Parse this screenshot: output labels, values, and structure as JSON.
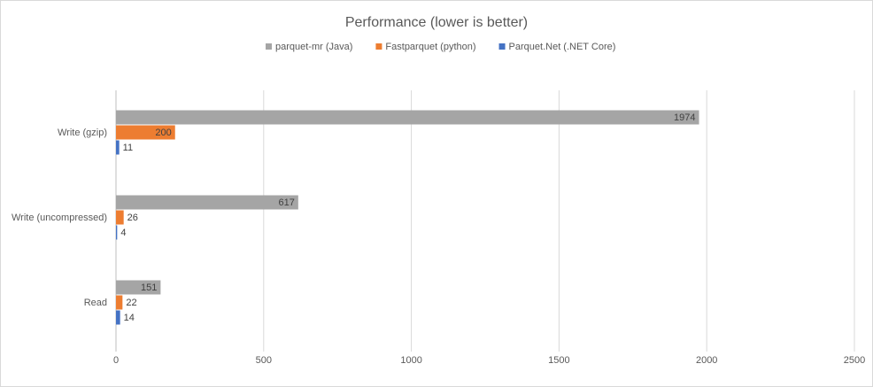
{
  "chart_data": {
    "type": "bar",
    "orientation": "horizontal",
    "title": "Performance (lower is better)",
    "categories": [
      "Write (gzip)",
      "Write (uncompressed)",
      "Read"
    ],
    "series": [
      {
        "name": "parquet-mr (Java)",
        "color": "#a5a5a5",
        "values": [
          1974,
          617,
          151
        ]
      },
      {
        "name": "Fastparquet (python)",
        "color": "#ed7d31",
        "values": [
          200,
          26,
          22
        ]
      },
      {
        "name": "Parquet.Net (.NET Core)",
        "color": "#4472c4",
        "values": [
          11,
          4,
          14
        ]
      }
    ],
    "xlim": [
      0,
      2500
    ],
    "xticks": [
      0,
      500,
      1000,
      1500,
      2000,
      2500
    ],
    "grid": true,
    "legend": "top"
  }
}
